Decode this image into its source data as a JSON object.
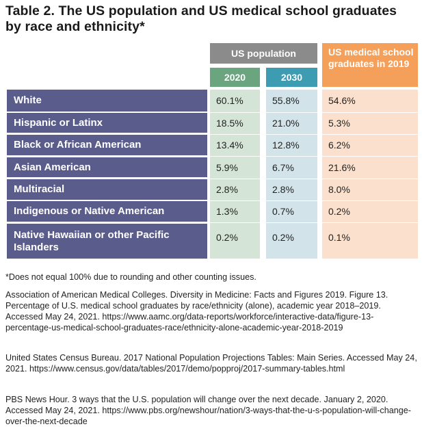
{
  "title": "Table 2. The US population and US medical school graduates by race and ethnicity*",
  "headers": {
    "us_population": "US population",
    "year_2020": "2020",
    "year_2030": "2030",
    "med_grads": "US medical school graduates in 2019"
  },
  "rows": [
    {
      "label": "White",
      "y2020": "60.1%",
      "y2030": "55.8%",
      "grads": "54.6%"
    },
    {
      "label": "Hispanic or Latinx",
      "y2020": "18.5%",
      "y2030": "21.0%",
      "grads": "5.3%"
    },
    {
      "label": "Black or African American",
      "y2020": "13.4%",
      "y2030": "12.8%",
      "grads": "6.2%"
    },
    {
      "label": "Asian American",
      "y2020": "5.9%",
      "y2030": "6.7%",
      "grads": "21.6%"
    },
    {
      "label": "Multiracial",
      "y2020": "2.8%",
      "y2030": "2.8%",
      "grads": "8.0%"
    },
    {
      "label": "Indigenous or Native American",
      "y2020": "1.3%",
      "y2030": "0.7%",
      "grads": "0.2%"
    },
    {
      "label": "Native Hawaiian or other Pacific Islanders",
      "y2020": "0.2%",
      "y2030": "0.2%",
      "grads": "0.1%"
    }
  ],
  "footnote": "*Does not equal 100% due to rounding and other counting issues.",
  "sources": [
    "Association of American Medical Colleges. Diversity in Medicine: Facts and Figures 2019. Figure 13. Percentage of U.S. medical school graduates by race/ethnicity (alone), academic year 2018–2019. Accessed May 24, 2021. https://www.aamc.org/data-reports/workforce/interactive-data/figure-13-percentage-us-medical-school-graduates-race/ethnicity-alone-academic-year-2018-2019",
    "United States Census Bureau. 2017 National Population Projections Tables: Main Series. Accessed May 24, 2021. https://www.census.gov/data/tables/2017/demo/popproj/2017-summary-tables.html",
    "PBS News Hour. 3 ways that the U.S. population will change over the next decade. January 2, 2020. Accessed May 24, 2021. https://www.pbs.org/newshour/nation/3-ways-that-the-u-s-population-will-change-over-the-next-decade"
  ]
}
